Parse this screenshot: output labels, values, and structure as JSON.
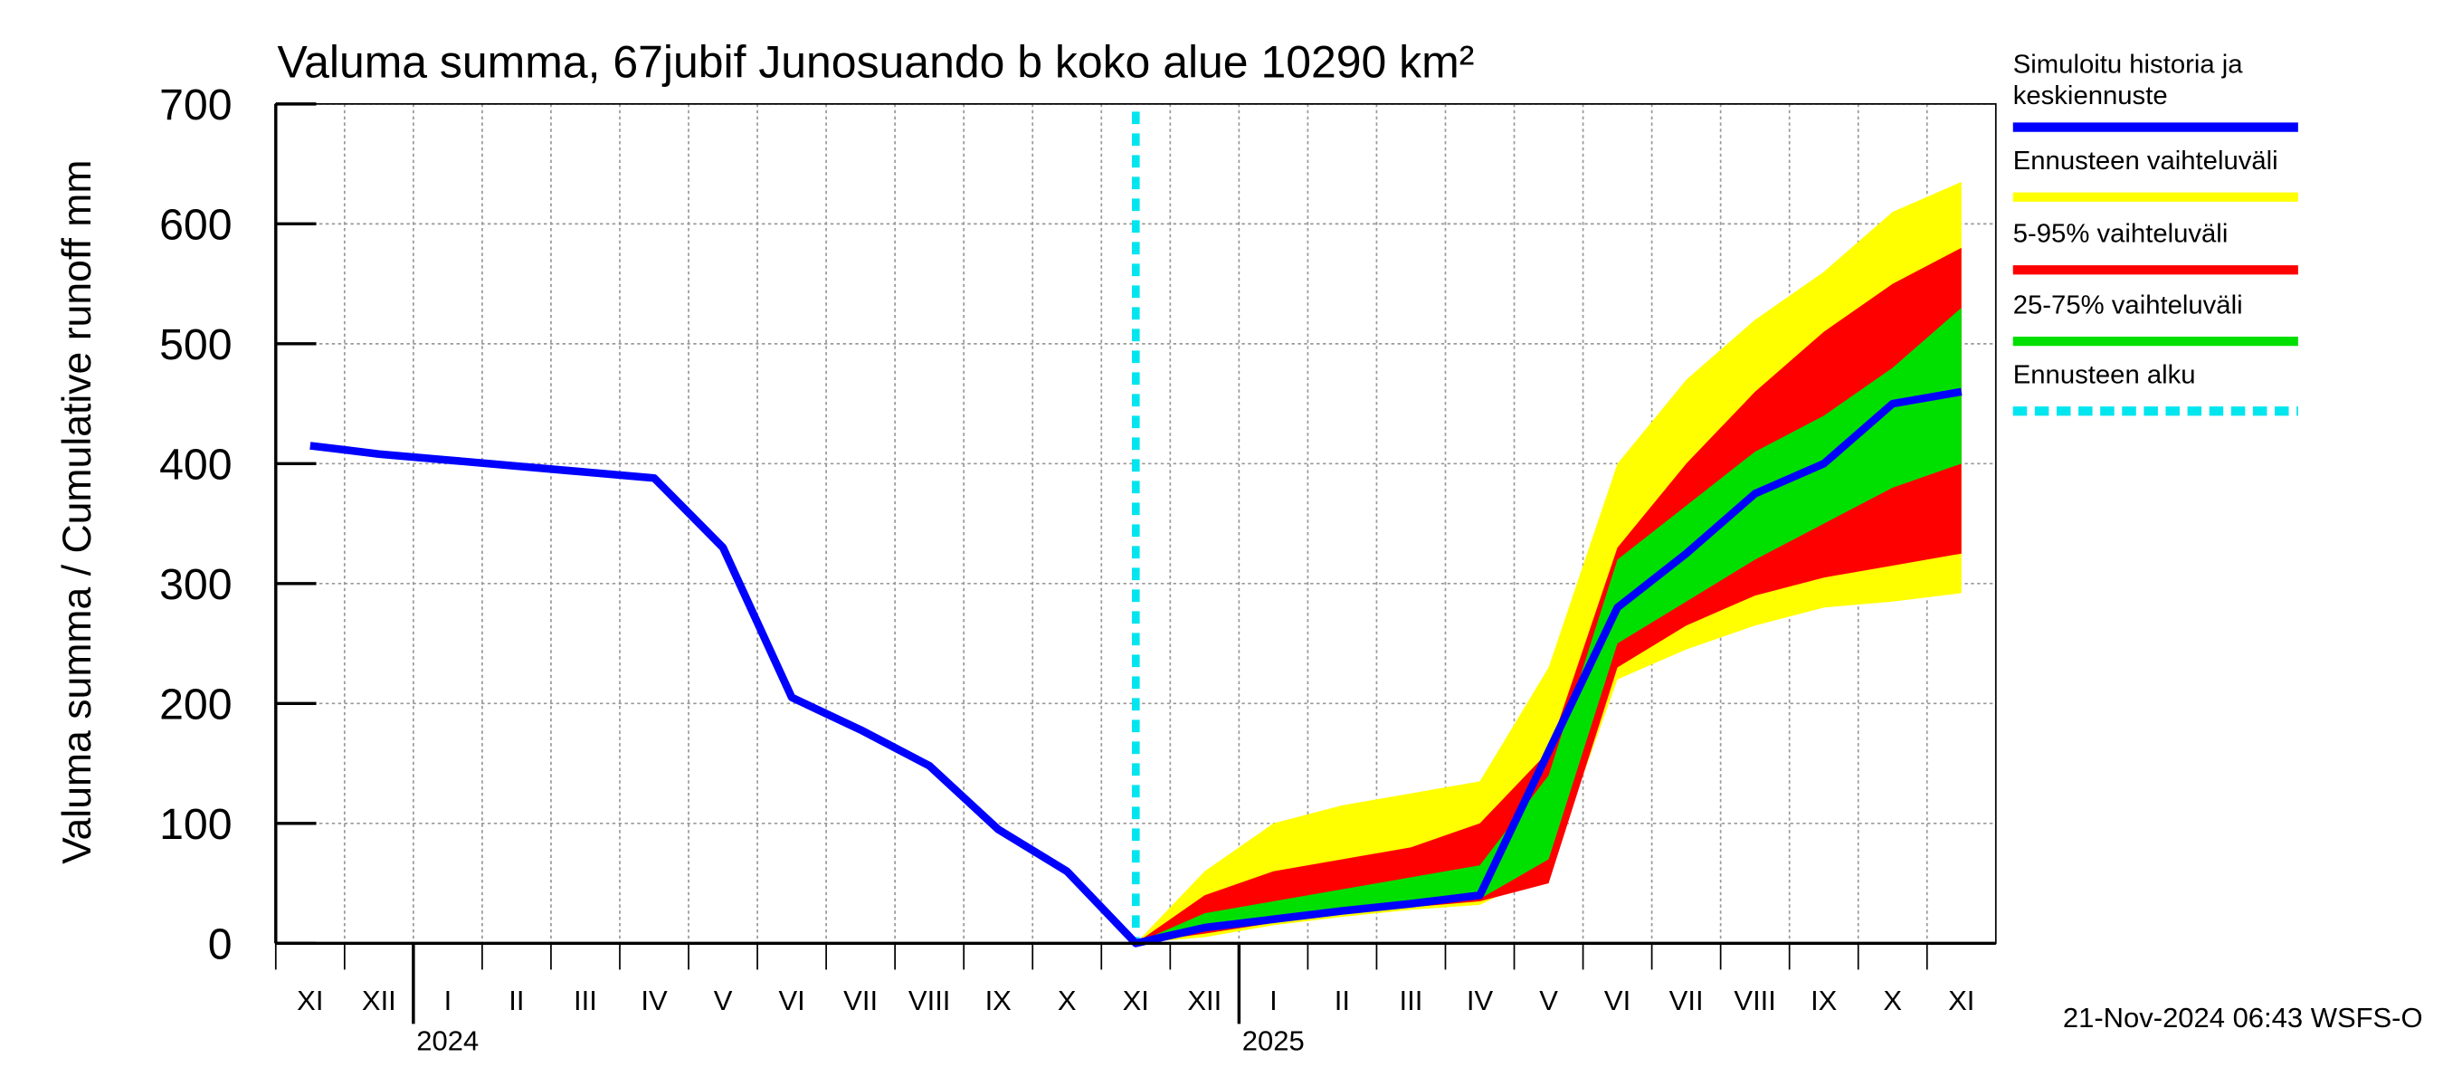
{
  "chart_data": {
    "type": "fan",
    "title": "Valuma summa, 67jubif Junosuando b koko alue 10290 km²",
    "ylabel": "Valuma summa / Cumulative runoff    mm",
    "footer": "21-Nov-2024 06:43 WSFS-O",
    "x": [
      "XI",
      "XII",
      "I",
      "II",
      "III",
      "IV",
      "V",
      "VI",
      "VII",
      "VIII",
      "IX",
      "X",
      "XI",
      "XII",
      "I",
      "II",
      "III",
      "IV",
      "V",
      "VI",
      "VII",
      "VIII",
      "IX",
      "X",
      "XI"
    ],
    "years": [
      "2024",
      "2025"
    ],
    "ylim": [
      0,
      700
    ],
    "yticks": [
      0,
      100,
      200,
      300,
      400,
      500,
      600,
      700
    ],
    "grid": true,
    "bands": [
      {
        "name": "Ennusteen vaihteluväli",
        "color": "#ffff00",
        "low": [
          null,
          null,
          null,
          null,
          null,
          null,
          null,
          null,
          null,
          null,
          null,
          null,
          0,
          5,
          15,
          22,
          28,
          32,
          60,
          220,
          245,
          265,
          280,
          285,
          292
        ],
        "high": [
          null,
          null,
          null,
          null,
          null,
          null,
          null,
          null,
          null,
          null,
          null,
          null,
          0,
          60,
          100,
          115,
          125,
          135,
          230,
          400,
          470,
          520,
          560,
          610,
          635
        ]
      },
      {
        "name": "5-95% vaihteluväli",
        "color": "#ff0000",
        "low": [
          null,
          null,
          null,
          null,
          null,
          null,
          null,
          null,
          null,
          null,
          null,
          null,
          0,
          8,
          17,
          24,
          30,
          35,
          50,
          230,
          265,
          290,
          305,
          315,
          325
        ],
        "high": [
          null,
          null,
          null,
          null,
          null,
          null,
          null,
          null,
          null,
          null,
          null,
          null,
          0,
          40,
          60,
          70,
          80,
          100,
          160,
          330,
          400,
          460,
          510,
          550,
          580
        ]
      },
      {
        "name": "25-75% vaihteluväli",
        "color": "#00e000",
        "low": [
          null,
          null,
          null,
          null,
          null,
          null,
          null,
          null,
          null,
          null,
          null,
          null,
          0,
          10,
          18,
          25,
          31,
          37,
          70,
          250,
          285,
          320,
          350,
          380,
          400
        ],
        "high": [
          null,
          null,
          null,
          null,
          null,
          null,
          null,
          null,
          null,
          null,
          null,
          null,
          0,
          25,
          35,
          45,
          55,
          65,
          140,
          320,
          365,
          410,
          440,
          480,
          530
        ]
      }
    ],
    "series": [
      {
        "name": "Simuloitu historia ja keskiennuste",
        "color": "#0000ff",
        "values": [
          415,
          408,
          403,
          398,
          393,
          388,
          330,
          205,
          178,
          148,
          95,
          60,
          0,
          13,
          20,
          27,
          33,
          40,
          160,
          280,
          325,
          375,
          400,
          450,
          460
        ]
      }
    ],
    "forecast_start": {
      "name": "Ennusteen alku",
      "color": "#00e5ee"
    }
  }
}
